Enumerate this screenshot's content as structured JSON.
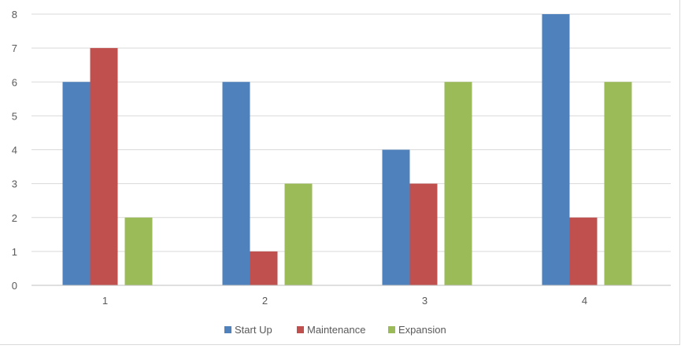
{
  "chart_data": {
    "type": "bar",
    "title": "",
    "xlabel": "",
    "ylabel": "",
    "categories": [
      "1",
      "2",
      "3",
      "4"
    ],
    "series": [
      {
        "name": "Start Up",
        "values": [
          6,
          6,
          4,
          8
        ],
        "color": "#4f81bd"
      },
      {
        "name": "Maintenance",
        "values": [
          7,
          1,
          3,
          2
        ],
        "color": "#c0504d"
      },
      {
        "name": "Expansion",
        "values": [
          2,
          3,
          6,
          6
        ],
        "color": "#9bbb59"
      }
    ],
    "ylim": [
      0,
      8
    ],
    "yticks": [
      "0",
      "1",
      "2",
      "3",
      "4",
      "5",
      "6",
      "7",
      "8"
    ],
    "grid": true,
    "legend_position": "bottom"
  }
}
